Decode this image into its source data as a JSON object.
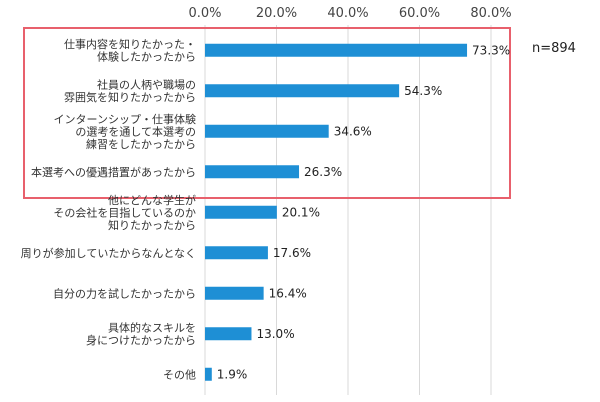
{
  "chart_data": {
    "type": "bar",
    "orientation": "horizontal",
    "sample_note": "n=894",
    "xlim": [
      0,
      80
    ],
    "ticks": [
      0,
      20,
      40,
      60,
      80
    ],
    "tick_labels": [
      "0.0%",
      "20.0%",
      "40.0%",
      "60.0%",
      "80.0%"
    ],
    "grid": true,
    "bar_color": "#1e8fd5",
    "highlight_color": "#e8606c",
    "highlight_count": 4,
    "categories": [
      [
        "仕事内容を知りたかった・",
        "体験したかったから"
      ],
      [
        "社員の人柄や職場の",
        "雰囲気を知りたかったから"
      ],
      [
        "インターンシップ・仕事体験",
        "の選考を通して本選考の",
        "練習をしたかったから"
      ],
      [
        "本選考への優遇措置があったから"
      ],
      [
        "他にどんな学生が",
        "その会社を目指しているのか",
        "知りたかったから"
      ],
      [
        "周りが参加していたからなんとなく"
      ],
      [
        "自分の力を試したかったから"
      ],
      [
        "具体的なスキルを",
        "身につけたかったから"
      ],
      [
        "その他"
      ]
    ],
    "values": [
      73.3,
      54.3,
      34.6,
      26.3,
      20.1,
      17.6,
      16.4,
      13.0,
      1.9
    ],
    "value_labels": [
      "73.3%",
      "54.3%",
      "34.6%",
      "26.3%",
      "20.1%",
      "17.6%",
      "16.4%",
      "13.0%",
      "1.9%"
    ]
  }
}
